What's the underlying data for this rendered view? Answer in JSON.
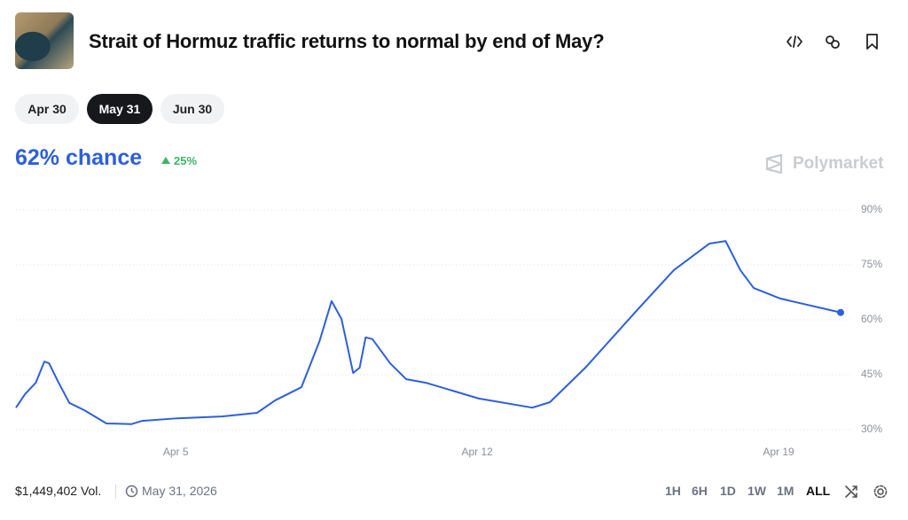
{
  "header": {
    "title": "Strait of Hormuz traffic returns to normal by end of May?"
  },
  "date_tabs": [
    "Apr 30",
    "May 31",
    "Jun 30"
  ],
  "selected_tab": 1,
  "chance_label": "62% chance",
  "change_label": "25%",
  "brand": "Polymarket",
  "chart_data": {
    "type": "line",
    "color": "#2d5fdc",
    "x": [
      1.29,
      1.5,
      1.75,
      1.95,
      2.06,
      2.26,
      2.53,
      2.88,
      3.39,
      3.97,
      4.22,
      5.04,
      6.07,
      6.89,
      7.31,
      7.92,
      8.34,
      8.62,
      8.85,
      9.12,
      9.27,
      9.41,
      9.57,
      9.98,
      10.35,
      10.81,
      12.04,
      13.28,
      13.69,
      14.51,
      15.75,
      16.57,
      17.39,
      17.77,
      18.11,
      18.42,
      19.04,
      20.44
    ],
    "values": [
      36.0,
      39.7,
      42.8,
      48.6,
      48.1,
      43.3,
      37.3,
      35.3,
      31.7,
      31.5,
      32.4,
      33.1,
      33.6,
      34.6,
      38.0,
      41.6,
      54.2,
      65.1,
      60.2,
      45.5,
      46.9,
      55.2,
      54.7,
      48.1,
      43.8,
      42.8,
      38.5,
      36.0,
      37.5,
      46.9,
      63.1,
      73.6,
      80.8,
      81.5,
      73.6,
      68.7,
      65.8,
      62
    ],
    "xlim": [
      1.29,
      20.44
    ],
    "xticks": [
      {
        "value": 5,
        "label": "Apr 5"
      },
      {
        "value": 12,
        "label": "Apr 12"
      },
      {
        "value": 19,
        "label": "Apr 19"
      }
    ],
    "ylim": [
      30,
      90
    ],
    "yticks": [
      {
        "value": 30,
        "label": "30%"
      },
      {
        "value": 45,
        "label": "45%"
      },
      {
        "value": 60,
        "label": "60%"
      },
      {
        "value": 75,
        "label": "75%"
      },
      {
        "value": 90,
        "label": "90%"
      }
    ],
    "grid": true
  },
  "footer": {
    "volume": "$1,449,402 Vol.",
    "end_date": "May 31, 2026",
    "ranges": [
      "1H",
      "6H",
      "1D",
      "1W",
      "1M",
      "ALL"
    ],
    "selected_range": 5
  }
}
